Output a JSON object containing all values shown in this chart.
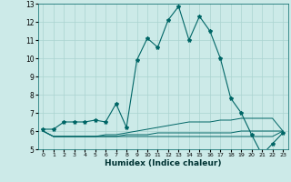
{
  "xlabel": "Humidex (Indice chaleur)",
  "bg_color": "#cceae8",
  "grid_color": "#aad4d0",
  "line_color": "#006666",
  "xlim": [
    -0.5,
    23.5
  ],
  "ylim": [
    5,
    13
  ],
  "xticks": [
    0,
    1,
    2,
    3,
    4,
    5,
    6,
    7,
    8,
    9,
    10,
    11,
    12,
    13,
    14,
    15,
    16,
    17,
    18,
    19,
    20,
    21,
    22,
    23
  ],
  "yticks": [
    5,
    6,
    7,
    8,
    9,
    10,
    11,
    12,
    13
  ],
  "series_main": [
    6.1,
    6.1,
    6.5,
    6.5,
    6.5,
    6.6,
    6.5,
    7.5,
    6.2,
    9.9,
    11.1,
    10.6,
    12.1,
    12.85,
    11.0,
    12.3,
    11.5,
    10.0,
    7.8,
    7.0,
    5.8,
    4.7,
    5.3,
    5.9
  ],
  "series_other": [
    [
      6.0,
      5.7,
      5.7,
      5.7,
      5.7,
      5.7,
      5.8,
      5.8,
      5.9,
      6.0,
      6.1,
      6.2,
      6.3,
      6.4,
      6.5,
      6.5,
      6.5,
      6.6,
      6.6,
      6.7,
      6.7,
      6.7,
      6.7,
      6.0
    ],
    [
      6.0,
      5.7,
      5.7,
      5.7,
      5.7,
      5.7,
      5.7,
      5.7,
      5.8,
      5.8,
      5.8,
      5.9,
      5.9,
      5.9,
      5.9,
      5.9,
      5.9,
      5.9,
      5.9,
      6.0,
      6.0,
      6.0,
      6.0,
      6.0
    ],
    [
      6.0,
      5.7,
      5.7,
      5.7,
      5.7,
      5.7,
      5.7,
      5.7,
      5.7,
      5.7,
      5.7,
      5.7,
      5.7,
      5.7,
      5.7,
      5.7,
      5.7,
      5.7,
      5.7,
      5.7,
      5.7,
      5.7,
      5.7,
      6.0
    ]
  ]
}
